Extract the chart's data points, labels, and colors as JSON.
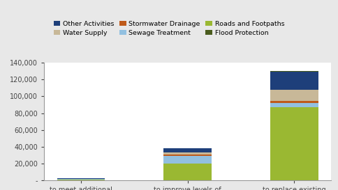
{
  "categories": [
    "to meet additional\ndemand",
    "to improve levels of\nservice",
    "to replace existing\nassets"
  ],
  "series": [
    {
      "name": "Roads and Footpaths",
      "color": "#9ab832",
      "values": [
        1200,
        20000,
        87000
      ]
    },
    {
      "name": "Sewage Treatment",
      "color": "#92c0e0",
      "values": [
        400,
        9500,
        5000
      ]
    },
    {
      "name": "Stormwater Drainage",
      "color": "#bf5a1a",
      "values": [
        300,
        1500,
        2500
      ]
    },
    {
      "name": "Water Supply",
      "color": "#c8b898",
      "values": [
        200,
        2500,
        13000
      ]
    },
    {
      "name": "Other Activities",
      "color": "#1e3f7a",
      "values": [
        400,
        4500,
        21500
      ]
    },
    {
      "name": "Flood Protection",
      "color": "#4a5c1e",
      "values": [
        100,
        400,
        1000
      ]
    }
  ],
  "ylim": [
    0,
    140000
  ],
  "yticks": [
    0,
    20000,
    40000,
    60000,
    80000,
    100000,
    120000,
    140000
  ],
  "ytick_labels": [
    "-",
    "20,000",
    "40,000",
    "60,000",
    "80,000",
    "100,000",
    "120,000",
    "140,000"
  ],
  "legend_order": [
    "Other Activities",
    "Water Supply",
    "Stormwater Drainage",
    "Sewage Treatment",
    "Roads and Footpaths",
    "Flood Protection"
  ],
  "legend_colors": {
    "Other Activities": "#1e3f7a",
    "Water Supply": "#c8b898",
    "Stormwater Drainage": "#bf5a1a",
    "Sewage Treatment": "#92c0e0",
    "Roads and Footpaths": "#9ab832",
    "Flood Protection": "#4a5c1e"
  },
  "bg_color": "#e8e8e8",
  "plot_bg_color": "#ffffff",
  "figsize": [
    4.84,
    2.73
  ],
  "dpi": 100
}
